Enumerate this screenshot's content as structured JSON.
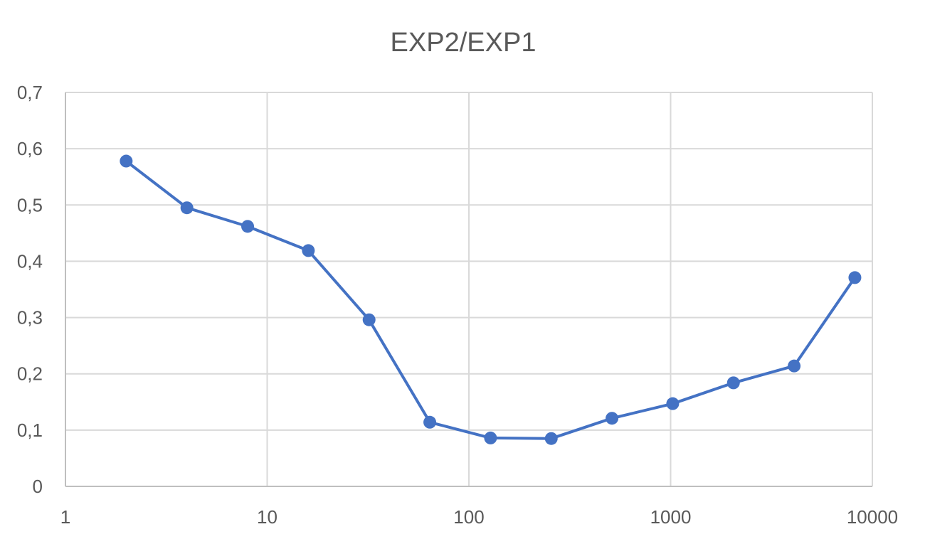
{
  "chart_data": {
    "type": "line",
    "title": "EXP2/EXP1",
    "xlabel": "",
    "ylabel": "",
    "x_scale": "log",
    "xlim": [
      1,
      10000
    ],
    "ylim": [
      0,
      0.7
    ],
    "x_ticks": [
      1,
      10,
      100,
      1000,
      10000
    ],
    "x_tick_labels": [
      "1",
      "10",
      "100",
      "1000",
      "10000"
    ],
    "y_ticks": [
      0,
      0.1,
      0.2,
      0.3,
      0.4,
      0.5,
      0.6,
      0.7
    ],
    "y_tick_labels": [
      "0",
      "0,1",
      "0,2",
      "0,3",
      "0,4",
      "0,5",
      "0,6",
      "0,7"
    ],
    "grid": true,
    "legend": "none",
    "series": [
      {
        "color": "#4472C4",
        "x": [
          2,
          4,
          8,
          16,
          32,
          64,
          128,
          256,
          512,
          1024,
          2048,
          4096,
          8192
        ],
        "y": [
          0.578,
          0.495,
          0.462,
          0.419,
          0.296,
          0.114,
          0.086,
          0.085,
          0.121,
          0.147,
          0.184,
          0.214,
          0.371
        ]
      }
    ]
  }
}
